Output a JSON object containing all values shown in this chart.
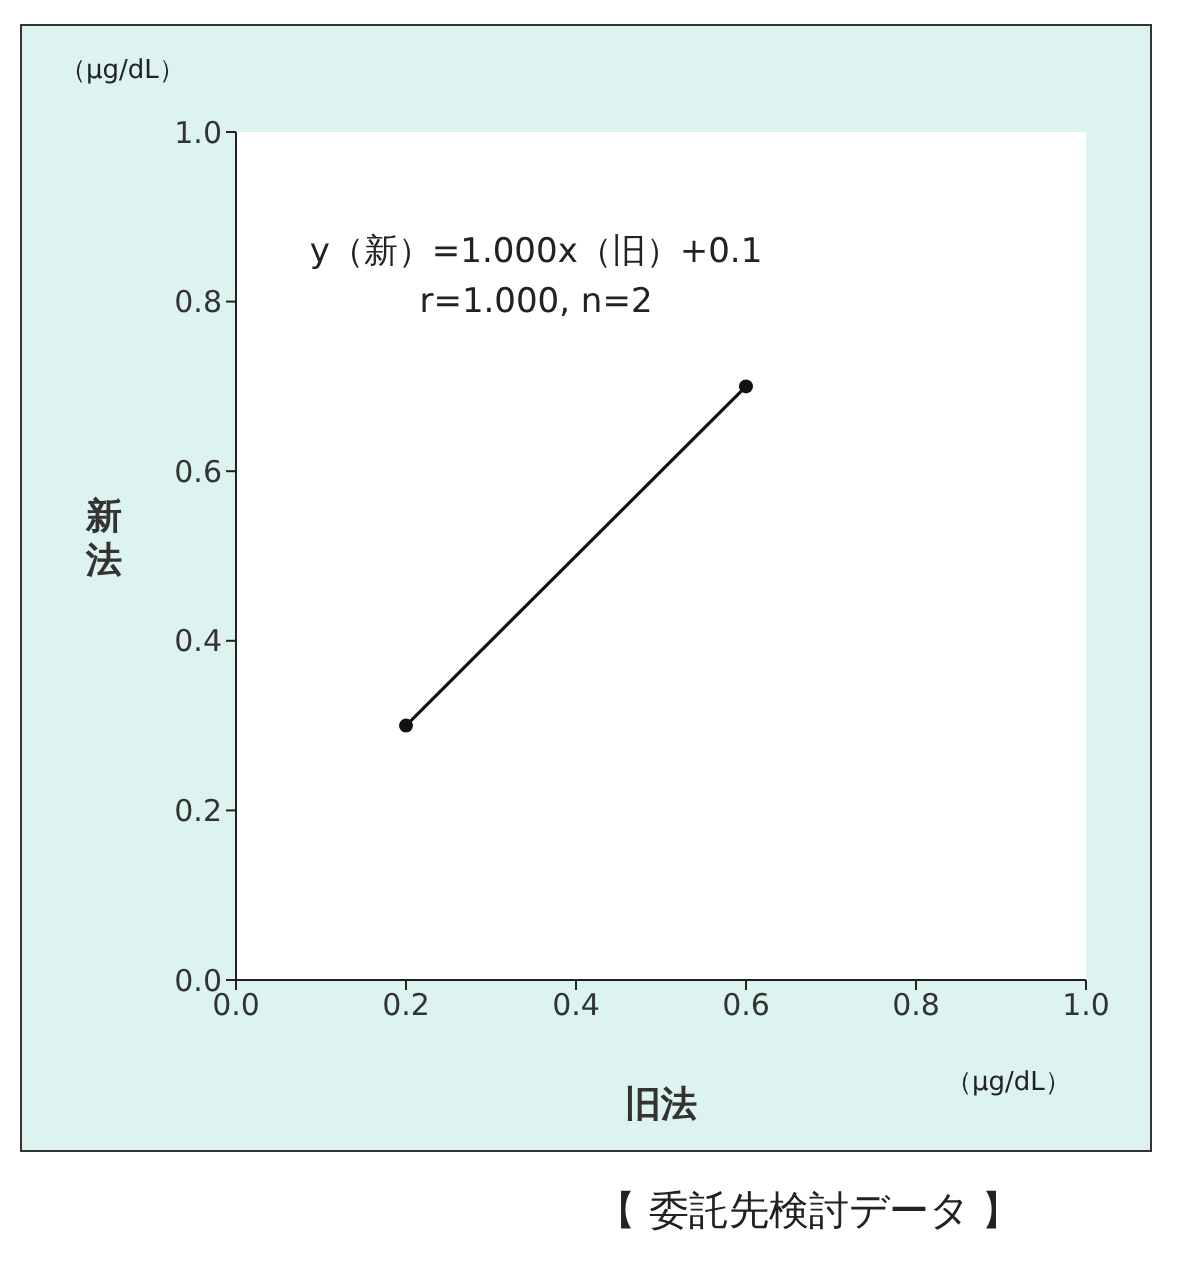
{
  "chart_data": {
    "type": "line",
    "xlabel": "旧法",
    "ylabel": "新法",
    "annotations": [
      "y（新）=1.000x（旧）+0.1",
      "r=1.000, n=2",
      "（μg/dL）",
      "（μg/dL）",
      "【 委託先検討データ 】"
    ],
    "x": [
      0.2,
      0.6
    ],
    "series": [
      {
        "color": "#111111",
        "values": [
          0.3,
          0.7
        ]
      }
    ],
    "xlim": [
      0,
      1
    ],
    "ylim": [
      0,
      1
    ],
    "xticks": [
      {
        "value": 0,
        "label": "0.0"
      },
      0.2,
      0.4,
      0.6,
      0.8,
      {
        "value": 1,
        "label": "1.0"
      }
    ],
    "yticks": [
      {
        "value": 0,
        "label": "0.0"
      },
      0.2,
      0.4,
      0.6,
      0.8,
      {
        "value": 1,
        "label": "1.0"
      }
    ],
    "marker": "circle",
    "line_style": "solid"
  }
}
